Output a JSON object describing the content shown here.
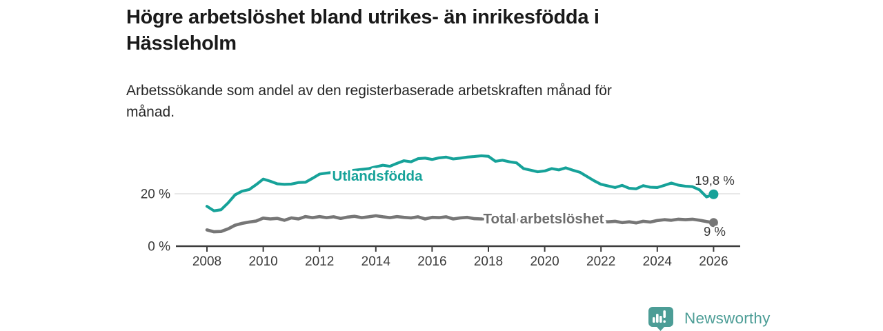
{
  "header": {
    "title_lines": [
      "Högre arbetslöshet bland utrikes- än inrikesfödda i",
      "Hässleholm"
    ],
    "subtitle_lines": [
      "Arbetssökande som andel av den registerbaserade arbetskraften månad för",
      "månad."
    ]
  },
  "chart_data": {
    "type": "line",
    "title": "Högre arbetslöshet bland utrikes- än inrikesfödda i Hässleholm",
    "subtitle": "Arbetssökande som andel av den registerbaserade arbetskraften månad för månad.",
    "unit": "%",
    "x_start": 2008,
    "x_step": 0.25,
    "x_end": 2026,
    "x_ticks": [
      2008,
      2010,
      2012,
      2014,
      2016,
      2018,
      2020,
      2022,
      2024,
      2026
    ],
    "ylim": [
      0,
      40
    ],
    "grid": "y-gridline-at-20-only",
    "legend": "inline-line-labels",
    "y_axis": {
      "ticks": [
        {
          "value": 0,
          "label": "0 %"
        },
        {
          "value": 20,
          "label": "20 %"
        }
      ]
    },
    "axis_style": {
      "label_color": "#3a3a3a",
      "line_color": "#3c3c3c",
      "grid_color": "#d9d9d9",
      "annotation_color": "#383838"
    },
    "series": [
      {
        "id": "utlandsfodda",
        "name": "Utlandsfödda",
        "color": "#16a299",
        "label_color": "#16a299",
        "end_label": "19,8 %",
        "end_value": 19.8,
        "values": [
          15.2,
          13.5,
          13.9,
          16.5,
          19.6,
          21.0,
          21.6,
          23.5,
          25.6,
          24.8,
          23.8,
          23.6,
          23.7,
          24.3,
          24.4,
          25.9,
          27.5,
          27.9,
          28.2,
          28.4,
          28.7,
          29.0,
          29.3,
          29.6,
          30.3,
          30.9,
          30.5,
          31.6,
          32.6,
          32.2,
          33.4,
          33.6,
          33.1,
          33.7,
          34.0,
          33.3,
          33.6,
          34.0,
          34.2,
          34.5,
          34.3,
          32.4,
          32.8,
          32.2,
          31.8,
          29.6,
          29.0,
          28.4,
          28.7,
          29.6,
          29.1,
          29.9,
          29.0,
          28.2,
          26.6,
          25.0,
          23.6,
          23.0,
          22.4,
          23.2,
          22.1,
          21.9,
          23.1,
          22.5,
          22.4,
          23.2,
          24.1,
          23.3,
          22.9,
          22.7,
          21.5,
          18.8,
          19.8
        ]
      },
      {
        "id": "total",
        "name": "Total arbetslöshet",
        "color": "#767676",
        "label_color": "#6e6e6e",
        "end_label": "9 %",
        "end_value": 9,
        "values": [
          6.2,
          5.5,
          5.6,
          6.6,
          8.0,
          8.7,
          9.2,
          9.6,
          10.7,
          10.4,
          10.6,
          9.9,
          10.8,
          10.4,
          11.3,
          10.9,
          11.3,
          10.9,
          11.2,
          10.6,
          11.1,
          11.4,
          10.9,
          11.2,
          11.6,
          11.2,
          10.9,
          11.3,
          11.0,
          10.8,
          11.2,
          10.4,
          11.0,
          10.9,
          11.2,
          10.4,
          10.8,
          11.0,
          10.5,
          10.4,
          10.6,
          10.3,
          10.5,
          10.2,
          10.0,
          9.8,
          9.9,
          9.7,
          10.0,
          10.6,
          10.8,
          10.5,
          10.3,
          10.0,
          9.8,
          9.6,
          9.4,
          9.3,
          9.5,
          9.0,
          9.3,
          8.9,
          9.5,
          9.2,
          9.8,
          10.1,
          9.9,
          10.3,
          10.1,
          10.3,
          9.9,
          9.4,
          9.0
        ]
      }
    ]
  },
  "footer": {
    "brand": "Newsworthy",
    "logo_color": "#4c9d96",
    "logo_icon": "bar-chart-badge-icon"
  }
}
